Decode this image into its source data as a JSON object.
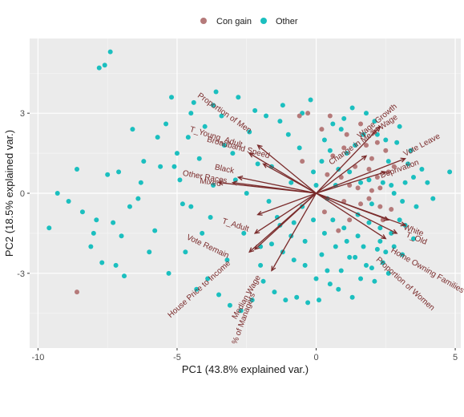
{
  "chart_data": {
    "type": "scatter",
    "subtype": "pca-biplot",
    "title": "",
    "xlabel": "PC1 (43.8% explained var.)",
    "ylabel": "PC2 (18.5% explained var.)",
    "xlim": [
      -10.3,
      5.2
    ],
    "ylim": [
      -5.8,
      5.8
    ],
    "x_ticks": [
      -10,
      -5,
      0,
      5
    ],
    "x_tick_labels": [
      "-10",
      "-5",
      "0",
      "5"
    ],
    "y_ticks": [
      -3,
      0,
      3
    ],
    "y_tick_labels": [
      "-3",
      "0",
      "3"
    ],
    "grid": true,
    "legend_position": "top",
    "colors": {
      "con_gain": "#b57a7a",
      "other": "#1bbfbf",
      "arrow": "#7a2b2b",
      "panel": "#ebebeb",
      "grid": "#ffffff"
    },
    "legend": [
      {
        "label": "Con gain",
        "color": "#b57a7a"
      },
      {
        "label": "Other",
        "color": "#1bbfbf"
      }
    ],
    "loadings": [
      {
        "label": "Proportion of Men",
        "x": -2.1,
        "y": 1.8,
        "lx": -3.3,
        "ly": 3.0,
        "angle": 35
      },
      {
        "label": "T_Young_Adult",
        "x": -2.4,
        "y": 1.5,
        "lx": -3.6,
        "ly": 2.1,
        "angle": 17
      },
      {
        "label": "Broadband Speed",
        "x": -1.9,
        "y": 1.1,
        "lx": -2.8,
        "ly": 1.7,
        "angle": 15
      },
      {
        "label": "Black",
        "x": -2.8,
        "y": 0.6,
        "lx": -3.3,
        "ly": 0.9,
        "angle": 12
      },
      {
        "label": "Other Races",
        "x": -3.0,
        "y": 0.4,
        "lx": -4.0,
        "ly": 0.6,
        "angle": 10
      },
      {
        "label": "Mixed",
        "x": -3.5,
        "y": 0.4,
        "lx": -3.8,
        "ly": 0.4,
        "angle": 8
      },
      {
        "label": "T_Adult",
        "x": -2.1,
        "y": -0.8,
        "lx": -2.9,
        "ly": -1.2,
        "angle": 18
      },
      {
        "label": "Vote Remain",
        "x": -2.2,
        "y": -1.5,
        "lx": -3.9,
        "ly": -2.0,
        "angle": 25
      },
      {
        "label": "House Price to Income",
        "x": -2.2,
        "y": -2.1,
        "lx": -4.2,
        "ly": -3.6,
        "angle": -42
      },
      {
        "label": "Median Wage",
        "x": -1.6,
        "y": -2.9,
        "lx": -2.5,
        "ly": -3.9,
        "angle": -60
      },
      {
        "label": "% of Managers",
        "x": -2.4,
        "y": -2.2,
        "lx": -2.6,
        "ly": -4.7,
        "angle": -70
      },
      {
        "label": "Wage Growth",
        "x": 2.3,
        "y": 2.5,
        "lx": 2.2,
        "ly": 2.7,
        "angle": -40
      },
      {
        "label": "Change in Mean Wage",
        "x": 1.8,
        "y": 1.4,
        "lx": 1.7,
        "ly": 2.0,
        "angle": -35
      },
      {
        "label": "Vote Leave",
        "x": 3.2,
        "y": 1.3,
        "lx": 3.8,
        "ly": 1.8,
        "angle": -28
      },
      {
        "label": "Deprivation",
        "x": 2.5,
        "y": 0.8,
        "lx": 3.0,
        "ly": 0.9,
        "angle": -20
      },
      {
        "label": "White",
        "x": 3.2,
        "y": -1.2,
        "lx": 3.5,
        "ly": -1.4,
        "angle": 20
      },
      {
        "label": "T_Old",
        "x": 2.6,
        "y": -1.0,
        "lx": 3.6,
        "ly": -1.7,
        "angle": 22
      },
      {
        "label": "Home Owning Families",
        "x": 2.9,
        "y": -1.5,
        "lx": 4.0,
        "ly": -2.9,
        "angle": 30
      },
      {
        "label": "Proportion of Women",
        "x": 2.5,
        "y": -1.7,
        "lx": 3.2,
        "ly": -3.4,
        "angle": 42
      }
    ],
    "points_con_gain": [
      [
        -8.6,
        -3.7
      ],
      [
        -0.3,
        3.0
      ],
      [
        -0.6,
        2.9
      ],
      [
        0.5,
        2.9
      ],
      [
        1.0,
        1.7
      ],
      [
        0.6,
        1.4
      ],
      [
        0.9,
        0.6
      ],
      [
        1.2,
        0.3
      ],
      [
        1.5,
        0.2
      ],
      [
        2.0,
        0.1
      ],
      [
        2.3,
        0.2
      ],
      [
        2.2,
        0.6
      ],
      [
        1.9,
        0.9
      ],
      [
        2.6,
        0.8
      ],
      [
        2.8,
        1.0
      ],
      [
        2.2,
        1.9
      ],
      [
        1.6,
        2.6
      ],
      [
        2.0,
        1.3
      ],
      [
        0.2,
        2.4
      ],
      [
        0.4,
        0.7
      ],
      [
        1.0,
        -0.3
      ],
      [
        1.6,
        -0.4
      ],
      [
        1.9,
        -0.2
      ],
      [
        2.3,
        -0.5
      ],
      [
        2.7,
        -0.6
      ],
      [
        2.1,
        2.3
      ],
      [
        1.1,
        2.2
      ],
      [
        2.5,
        1.6
      ],
      [
        0.3,
        -0.7
      ],
      [
        1.4,
        1.0
      ],
      [
        -0.5,
        1.2
      ],
      [
        2.4,
        -1.0
      ],
      [
        1.2,
        -1.0
      ],
      [
        0.8,
        -1.4
      ],
      [
        1.8,
        1.8
      ]
    ],
    "points_other": [
      [
        -9.6,
        -1.3
      ],
      [
        -9.3,
        0.0
      ],
      [
        -8.9,
        -0.3
      ],
      [
        -8.6,
        0.9
      ],
      [
        -8.4,
        -0.7
      ],
      [
        -8.1,
        -2.0
      ],
      [
        -7.9,
        -1.0
      ],
      [
        -7.8,
        4.7
      ],
      [
        -7.6,
        4.8
      ],
      [
        -7.4,
        5.3
      ],
      [
        -7.7,
        -2.6
      ],
      [
        -7.5,
        0.7
      ],
      [
        -7.3,
        -1.1
      ],
      [
        -7.1,
        0.8
      ],
      [
        -7.2,
        -2.7
      ],
      [
        -6.9,
        -3.1
      ],
      [
        -6.7,
        -0.5
      ],
      [
        -6.6,
        2.4
      ],
      [
        -6.2,
        1.2
      ],
      [
        -6.0,
        -2.2
      ],
      [
        -5.8,
        -1.4
      ],
      [
        -5.6,
        1.0
      ],
      [
        -5.4,
        2.6
      ],
      [
        -5.2,
        3.6
      ],
      [
        -5.0,
        1.5
      ],
      [
        -4.8,
        -0.4
      ],
      [
        -4.6,
        2.1
      ],
      [
        -4.4,
        3.4
      ],
      [
        -4.2,
        1.3
      ],
      [
        -4.0,
        2.5
      ],
      [
        -3.8,
        -0.9
      ],
      [
        -3.6,
        3.8
      ],
      [
        -3.4,
        2.9
      ],
      [
        -3.2,
        -2.5
      ],
      [
        -3.0,
        1.5
      ],
      [
        -2.8,
        3.6
      ],
      [
        -2.6,
        -1.5
      ],
      [
        -2.4,
        2.3
      ],
      [
        -2.2,
        3.1
      ],
      [
        -2.0,
        -2.0
      ],
      [
        -1.8,
        2.9
      ],
      [
        -1.6,
        1.0
      ],
      [
        -1.4,
        -0.9
      ],
      [
        -1.2,
        3.3
      ],
      [
        -1.0,
        2.2
      ],
      [
        -0.8,
        -2.5
      ],
      [
        -0.6,
        1.7
      ],
      [
        -0.4,
        -1.8
      ],
      [
        -0.2,
        3.5
      ],
      [
        0.0,
        -3.2
      ],
      [
        0.2,
        1.2
      ],
      [
        0.4,
        -2.9
      ],
      [
        0.6,
        2.6
      ],
      [
        0.8,
        -3.6
      ],
      [
        1.0,
        2.8
      ],
      [
        1.2,
        -2.4
      ],
      [
        1.4,
        1.8
      ],
      [
        1.6,
        -3.2
      ],
      [
        1.8,
        3.0
      ],
      [
        2.0,
        -2.8
      ],
      [
        2.2,
        2.2
      ],
      [
        2.4,
        -2.6
      ],
      [
        2.6,
        1.2
      ],
      [
        2.8,
        -2.0
      ],
      [
        3.0,
        2.5
      ],
      [
        3.2,
        -1.2
      ],
      [
        3.4,
        1.6
      ],
      [
        3.6,
        -0.5
      ],
      [
        3.8,
        0.9
      ],
      [
        4.0,
        0.4
      ],
      [
        4.2,
        -0.2
      ],
      [
        4.8,
        0.8
      ],
      [
        -7.0,
        -1.6
      ],
      [
        -8.0,
        -1.5
      ],
      [
        -6.4,
        -0.2
      ],
      [
        -5.3,
        -3.0
      ],
      [
        -4.7,
        -2.2
      ],
      [
        -4.3,
        -3.6
      ],
      [
        -3.9,
        -3.2
      ],
      [
        -3.5,
        -3.8
      ],
      [
        -3.1,
        -4.2
      ],
      [
        -2.7,
        -4.4
      ],
      [
        -2.3,
        -4.0
      ],
      [
        -1.9,
        -3.3
      ],
      [
        -1.5,
        -3.7
      ],
      [
        -1.1,
        -4.0
      ],
      [
        -0.7,
        -3.9
      ],
      [
        -0.3,
        -4.1
      ],
      [
        0.1,
        -4.0
      ],
      [
        0.5,
        -3.4
      ],
      [
        0.9,
        -2.9
      ],
      [
        1.3,
        -3.9
      ],
      [
        1.7,
        -2.0
      ],
      [
        2.1,
        -3.3
      ],
      [
        2.5,
        -2.2
      ],
      [
        -1.3,
        2.7
      ],
      [
        -0.9,
        0.4
      ],
      [
        -0.5,
        3.0
      ],
      [
        -0.1,
        0.8
      ],
      [
        0.3,
        2.0
      ],
      [
        0.7,
        0.3
      ],
      [
        1.1,
        1.5
      ],
      [
        1.5,
        -0.8
      ],
      [
        1.9,
        0.5
      ],
      [
        2.3,
        -1.3
      ],
      [
        2.7,
        0.3
      ],
      [
        3.1,
        -0.3
      ],
      [
        3.5,
        0.6
      ],
      [
        -2.9,
        0.5
      ],
      [
        -2.5,
        0.0
      ],
      [
        -2.1,
        1.1
      ],
      [
        -1.7,
        -0.3
      ],
      [
        -1.3,
        -1.2
      ],
      [
        -0.9,
        -1.6
      ],
      [
        -0.5,
        -0.5
      ],
      [
        -0.1,
        -1.0
      ],
      [
        0.3,
        -1.5
      ],
      [
        0.7,
        -2.0
      ],
      [
        1.1,
        -1.8
      ],
      [
        1.5,
        -1.6
      ],
      [
        1.9,
        -1.1
      ],
      [
        2.3,
        -1.8
      ],
      [
        2.7,
        -1.5
      ],
      [
        3.1,
        -2.3
      ],
      [
        3.5,
        -1.7
      ],
      [
        -4.9,
        0.5
      ],
      [
        -4.5,
        -0.5
      ],
      [
        -4.1,
        -1.5
      ],
      [
        -3.7,
        0.3
      ],
      [
        -3.3,
        1.8
      ],
      [
        0.0,
        0.3
      ],
      [
        0.4,
        -0.2
      ],
      [
        0.8,
        0.9
      ],
      [
        1.2,
        0.8
      ],
      [
        1.6,
        0.4
      ],
      [
        2.0,
        -0.4
      ],
      [
        2.4,
        0.4
      ],
      [
        2.8,
        0.0
      ],
      [
        3.2,
        0.4
      ],
      [
        0.5,
        1.6
      ],
      [
        0.9,
        2.4
      ],
      [
        1.3,
        3.2
      ],
      [
        1.7,
        2.2
      ],
      [
        2.1,
        2.7
      ],
      [
        2.5,
        2.0
      ],
      [
        2.9,
        1.9
      ],
      [
        3.3,
        1.1
      ],
      [
        0.2,
        -2.3
      ],
      [
        0.6,
        -1.0
      ],
      [
        1.0,
        -1.3
      ],
      [
        1.4,
        -2.4
      ],
      [
        1.8,
        -2.7
      ],
      [
        2.2,
        -2.1
      ],
      [
        2.6,
        -3.0
      ],
      [
        3.0,
        -1.0
      ],
      [
        -0.4,
        -2.7
      ],
      [
        -0.8,
        -1.1
      ],
      [
        -1.2,
        -2.2
      ],
      [
        -1.6,
        -1.9
      ],
      [
        -2.0,
        -2.7
      ],
      [
        -6.3,
        0.4
      ],
      [
        -5.7,
        2.1
      ],
      [
        -5.1,
        1.0
      ],
      [
        -4.5,
        3.0
      ],
      [
        -3.7,
        3.3
      ]
    ]
  }
}
